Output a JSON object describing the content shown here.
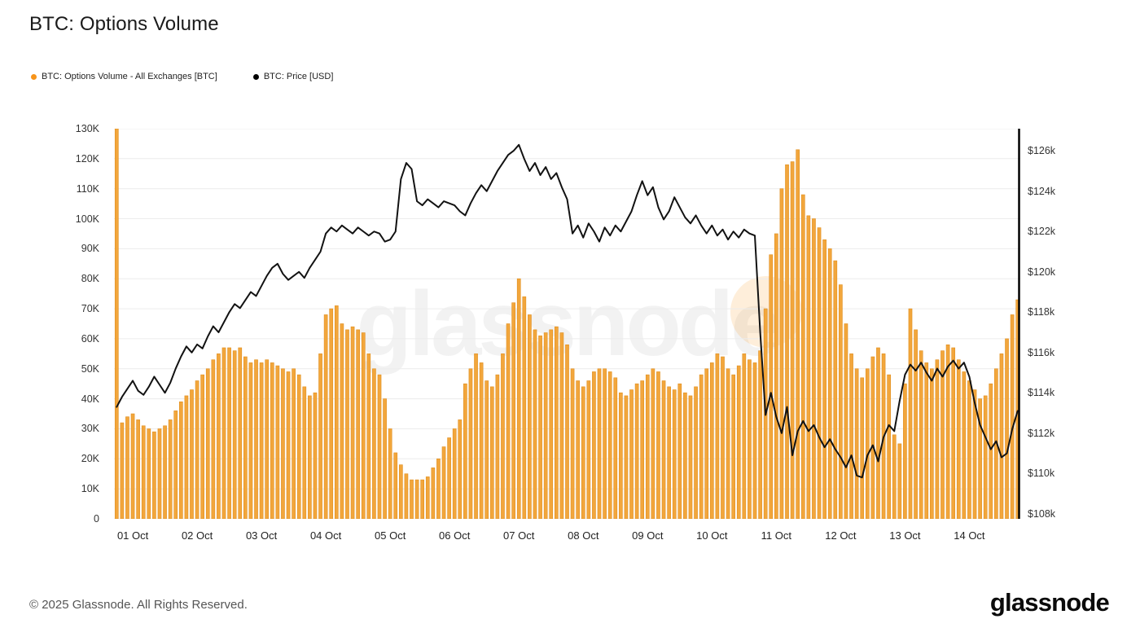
{
  "header": {
    "title": "BTC: Options Volume"
  },
  "legend": [
    {
      "label": "BTC: Options Volume - All Exchanges [BTC]",
      "color": "#f7941a"
    },
    {
      "label": "BTC: Price [USD]",
      "color": "#000000"
    }
  ],
  "watermark": "glassnode",
  "footer": {
    "copyright": "© 2025 Glassnode. All Rights Reserved.",
    "brand": "glassnode"
  },
  "chart_data": {
    "type": "bar+line",
    "title": "BTC: Options Volume",
    "grid": "horizontal",
    "legend_position": "top-left",
    "x_ticks": {
      "labels": [
        "01 Oct",
        "02 Oct",
        "03 Oct",
        "04 Oct",
        "05 Oct",
        "06 Oct",
        "07 Oct",
        "08 Oct",
        "09 Oct",
        "10 Oct",
        "11 Oct",
        "12 Oct",
        "13 Oct",
        "14 Oct"
      ],
      "first_index": 3,
      "step": 12,
      "interval": "2 hours per bar"
    },
    "left_axis": {
      "min_k": 0,
      "max_k": 130,
      "ticks": [
        {
          "v": 0,
          "label": "0"
        },
        {
          "v": 10,
          "label": "10K"
        },
        {
          "v": 20,
          "label": "20K"
        },
        {
          "v": 30,
          "label": "30K"
        },
        {
          "v": 40,
          "label": "40K"
        },
        {
          "v": 50,
          "label": "50K"
        },
        {
          "v": 60,
          "label": "60K"
        },
        {
          "v": 70,
          "label": "70K"
        },
        {
          "v": 80,
          "label": "80K"
        },
        {
          "v": 90,
          "label": "90K"
        },
        {
          "v": 100,
          "label": "100K"
        },
        {
          "v": 110,
          "label": "110K"
        },
        {
          "v": 120,
          "label": "120K"
        },
        {
          "v": 130,
          "label": "130K"
        }
      ]
    },
    "right_axis": {
      "min_k": 107.75,
      "max_k": 127.1,
      "ticks": [
        {
          "v": 108,
          "label": "$108k"
        },
        {
          "v": 110,
          "label": "$110k"
        },
        {
          "v": 112,
          "label": "$112k"
        },
        {
          "v": 114,
          "label": "$114k"
        },
        {
          "v": 116,
          "label": "$116k"
        },
        {
          "v": 118,
          "label": "$118k"
        },
        {
          "v": 120,
          "label": "$120k"
        },
        {
          "v": 122,
          "label": "$122k"
        },
        {
          "v": 124,
          "label": "$124k"
        },
        {
          "v": 126,
          "label": "$126k"
        }
      ]
    },
    "series": [
      {
        "name": "BTC: Options Volume - All Exchanges [BTC]",
        "type": "bar",
        "axis": "left",
        "unit": "K BTC",
        "color": "#f2a63c",
        "edge_color": "#e08f1f",
        "values_k": [
          130,
          32,
          34,
          35,
          33,
          31,
          30,
          29,
          30,
          31,
          33,
          36,
          39,
          41,
          43,
          46,
          48,
          50,
          53,
          55,
          57,
          57,
          56,
          57,
          54,
          52,
          53,
          52,
          53,
          52,
          51,
          50,
          49,
          50,
          48,
          44,
          41,
          42,
          55,
          68,
          70,
          71,
          65,
          63,
          64,
          63,
          62,
          55,
          50,
          48,
          40,
          30,
          22,
          18,
          15,
          13,
          13,
          13,
          14,
          17,
          20,
          24,
          27,
          30,
          33,
          45,
          50,
          55,
          52,
          46,
          44,
          48,
          55,
          65,
          72,
          80,
          74,
          68,
          63,
          61,
          62,
          63,
          64,
          62,
          58,
          50,
          46,
          44,
          46,
          49,
          50,
          50,
          49,
          47,
          42,
          41,
          43,
          45,
          46,
          48,
          50,
          49,
          46,
          44,
          43,
          45,
          42,
          41,
          44,
          48,
          50,
          52,
          55,
          54,
          50,
          48,
          51,
          55,
          53,
          52,
          56,
          70,
          88,
          95,
          110,
          118,
          119,
          123,
          108,
          101,
          100,
          97,
          93,
          90,
          86,
          78,
          65,
          55,
          50,
          47,
          50,
          54,
          57,
          55,
          48,
          28,
          25,
          45,
          70,
          63,
          56,
          52,
          50,
          53,
          56,
          58,
          57,
          53,
          49,
          46,
          43,
          40,
          41,
          45,
          50,
          55,
          60,
          68,
          73
        ]
      },
      {
        "name": "BTC: Price [USD]",
        "type": "line",
        "axis": "right",
        "unit": "$k USD",
        "color": "#121212",
        "values_k": [
          113.3,
          113.8,
          114.2,
          114.6,
          114.1,
          113.9,
          114.3,
          114.8,
          114.4,
          114.0,
          114.5,
          115.2,
          115.8,
          116.3,
          116.0,
          116.4,
          116.2,
          116.8,
          117.3,
          117.0,
          117.5,
          118.0,
          118.4,
          118.2,
          118.6,
          119.0,
          118.8,
          119.3,
          119.8,
          120.2,
          120.4,
          119.9,
          119.6,
          119.8,
          120.0,
          119.7,
          120.2,
          120.6,
          121.0,
          121.9,
          122.2,
          122.0,
          122.3,
          122.1,
          121.9,
          122.2,
          122.0,
          121.8,
          122.0,
          121.9,
          121.5,
          121.6,
          122.0,
          124.6,
          125.4,
          125.1,
          123.5,
          123.3,
          123.6,
          123.4,
          123.2,
          123.5,
          123.4,
          123.3,
          123.0,
          122.8,
          123.4,
          123.9,
          124.3,
          124.0,
          124.5,
          125.0,
          125.4,
          125.8,
          126.0,
          126.3,
          125.6,
          125.0,
          125.4,
          124.8,
          125.2,
          124.6,
          124.9,
          124.2,
          123.6,
          121.9,
          122.3,
          121.7,
          122.4,
          122.0,
          121.5,
          122.2,
          121.8,
          122.3,
          122.0,
          122.5,
          123.0,
          123.8,
          124.5,
          123.8,
          124.2,
          123.2,
          122.6,
          123.0,
          123.7,
          123.2,
          122.7,
          122.4,
          122.8,
          122.3,
          121.9,
          122.3,
          121.8,
          122.1,
          121.6,
          122.0,
          121.7,
          122.1,
          121.9,
          121.8,
          117.0,
          112.9,
          114.0,
          112.8,
          112.0,
          113.3,
          110.9,
          112.1,
          112.6,
          112.1,
          112.4,
          111.8,
          111.3,
          111.7,
          111.2,
          110.8,
          110.3,
          110.9,
          109.9,
          109.8,
          110.9,
          111.4,
          110.6,
          111.8,
          112.4,
          112.1,
          113.6,
          114.9,
          115.4,
          115.1,
          115.5,
          115.0,
          114.6,
          115.2,
          114.8,
          115.3,
          115.6,
          115.2,
          115.5,
          114.8,
          113.5,
          112.4,
          111.8,
          111.2,
          111.6,
          110.8,
          111.0,
          112.2,
          113.1
        ]
      }
    ]
  }
}
